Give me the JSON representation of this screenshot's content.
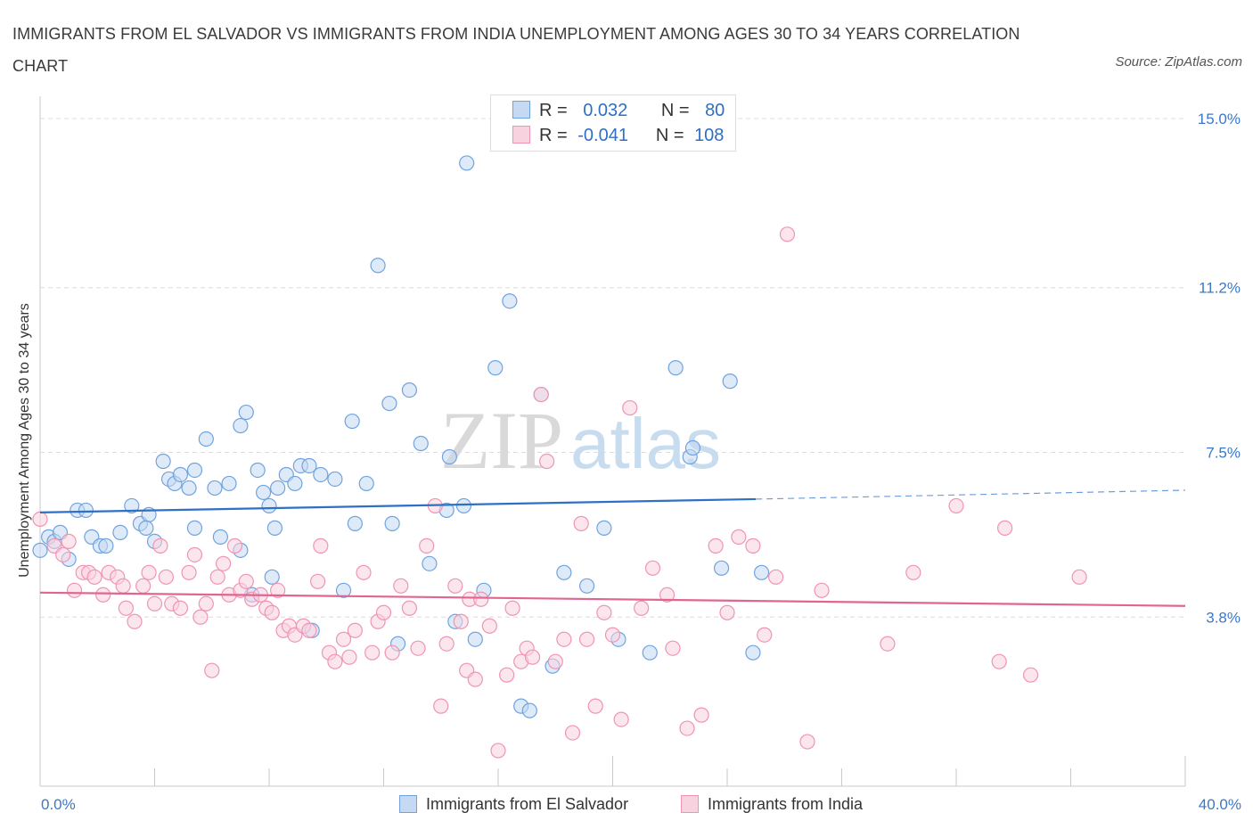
{
  "chart_data": {
    "type": "scatter",
    "title": "IMMIGRANTS FROM EL SALVADOR VS IMMIGRANTS FROM INDIA UNEMPLOYMENT AMONG AGES 30 TO 34 YEARS CORRELATION CHART",
    "source": "Source: ZipAtlas.com",
    "ylabel": "Unemployment Among Ages 30 to 34 years",
    "xlim": [
      0,
      40
    ],
    "ylim": [
      0,
      15
    ],
    "x_tick_labels": [
      "0.0%",
      "40.0%"
    ],
    "y_ticks": [
      3.8,
      7.5,
      11.2,
      15.0
    ],
    "y_tick_labels": [
      "3.8%",
      "7.5%",
      "11.2%",
      "15.0%"
    ],
    "grid": "horizontal dashed",
    "watermark": "ZIPatlas",
    "legend_stats": [
      {
        "r_label": "R =",
        "r_value": "0.032",
        "n_label": "N =",
        "n_value": "80"
      },
      {
        "r_label": "R =",
        "r_value": "-0.041",
        "n_label": "N =",
        "n_value": "108"
      }
    ],
    "series": [
      {
        "name": "Immigrants from El Salvador",
        "color": "#6fa3e0",
        "fill": "#c5d9f3",
        "trend_color": "#2f6fc4",
        "trend": {
          "x0": 0,
          "y0": 6.15,
          "x1": 25,
          "y1": 6.45,
          "dash_to_x": 40,
          "dash_to_y": 6.65
        },
        "points": [
          [
            0,
            5.3
          ],
          [
            0.3,
            5.6
          ],
          [
            0.5,
            5.5
          ],
          [
            0.7,
            5.7
          ],
          [
            1.0,
            5.1
          ],
          [
            1.3,
            6.2
          ],
          [
            1.6,
            6.2
          ],
          [
            1.8,
            5.6
          ],
          [
            2.1,
            5.4
          ],
          [
            2.3,
            5.4
          ],
          [
            2.8,
            5.7
          ],
          [
            3.2,
            6.3
          ],
          [
            3.5,
            5.9
          ],
          [
            3.8,
            6.1
          ],
          [
            3.7,
            5.8
          ],
          [
            4.0,
            5.5
          ],
          [
            4.3,
            7.3
          ],
          [
            4.5,
            6.9
          ],
          [
            4.7,
            6.8
          ],
          [
            4.9,
            7.0
          ],
          [
            5.2,
            6.7
          ],
          [
            5.4,
            7.1
          ],
          [
            5.4,
            5.8
          ],
          [
            5.8,
            7.8
          ],
          [
            6.1,
            6.7
          ],
          [
            6.3,
            5.6
          ],
          [
            6.6,
            6.8
          ],
          [
            7.0,
            8.1
          ],
          [
            7.2,
            8.4
          ],
          [
            7.0,
            5.3
          ],
          [
            7.4,
            4.3
          ],
          [
            7.6,
            7.1
          ],
          [
            7.8,
            6.6
          ],
          [
            8.0,
            6.3
          ],
          [
            8.2,
            5.8
          ],
          [
            8.1,
            4.7
          ],
          [
            8.3,
            6.7
          ],
          [
            8.6,
            7.0
          ],
          [
            8.9,
            6.8
          ],
          [
            9.1,
            7.2
          ],
          [
            9.4,
            7.2
          ],
          [
            9.5,
            3.5
          ],
          [
            9.8,
            7.0
          ],
          [
            10.3,
            6.9
          ],
          [
            10.6,
            4.4
          ],
          [
            10.9,
            8.2
          ],
          [
            11.0,
            5.9
          ],
          [
            11.4,
            6.8
          ],
          [
            11.8,
            11.7
          ],
          [
            12.2,
            8.6
          ],
          [
            12.3,
            5.9
          ],
          [
            12.5,
            3.2
          ],
          [
            12.9,
            8.9
          ],
          [
            13.3,
            7.7
          ],
          [
            13.6,
            5.0
          ],
          [
            14.2,
            6.2
          ],
          [
            14.3,
            7.4
          ],
          [
            14.5,
            3.7
          ],
          [
            14.8,
            6.3
          ],
          [
            14.9,
            14.0
          ],
          [
            15.2,
            3.3
          ],
          [
            15.5,
            4.4
          ],
          [
            15.9,
            9.4
          ],
          [
            16.4,
            10.9
          ],
          [
            16.8,
            1.8
          ],
          [
            17.1,
            1.7
          ],
          [
            17.5,
            8.8
          ],
          [
            17.9,
            2.7
          ],
          [
            18.3,
            4.8
          ],
          [
            19.1,
            4.5
          ],
          [
            19.7,
            5.8
          ],
          [
            20.2,
            3.3
          ],
          [
            21.3,
            3.0
          ],
          [
            22.2,
            9.4
          ],
          [
            22.7,
            7.4
          ],
          [
            22.8,
            7.6
          ],
          [
            23.8,
            4.9
          ],
          [
            24.1,
            9.1
          ],
          [
            24.9,
            3.0
          ],
          [
            25.2,
            4.8
          ]
        ]
      },
      {
        "name": "Immigrants from India",
        "color": "#ef94b2",
        "fill": "#f9d2df",
        "trend_color": "#e0668f",
        "trend": {
          "x0": 0,
          "y0": 4.35,
          "x1": 40,
          "y1": 4.05
        },
        "points": [
          [
            0,
            6.0
          ],
          [
            0.5,
            5.4
          ],
          [
            0.8,
            5.2
          ],
          [
            1.0,
            5.5
          ],
          [
            1.2,
            4.4
          ],
          [
            1.5,
            4.8
          ],
          [
            1.7,
            4.8
          ],
          [
            1.9,
            4.7
          ],
          [
            2.2,
            4.3
          ],
          [
            2.4,
            4.8
          ],
          [
            2.7,
            4.7
          ],
          [
            2.9,
            4.5
          ],
          [
            3.0,
            4.0
          ],
          [
            3.3,
            3.7
          ],
          [
            3.6,
            4.5
          ],
          [
            3.8,
            4.8
          ],
          [
            4.0,
            4.1
          ],
          [
            4.2,
            5.4
          ],
          [
            4.4,
            4.7
          ],
          [
            4.6,
            4.1
          ],
          [
            4.9,
            4.0
          ],
          [
            5.2,
            4.8
          ],
          [
            5.4,
            5.2
          ],
          [
            5.6,
            3.8
          ],
          [
            5.8,
            4.1
          ],
          [
            6.0,
            2.6
          ],
          [
            6.2,
            4.7
          ],
          [
            6.4,
            5.0
          ],
          [
            6.6,
            4.3
          ],
          [
            6.8,
            5.4
          ],
          [
            7.0,
            4.4
          ],
          [
            7.2,
            4.6
          ],
          [
            7.4,
            4.2
          ],
          [
            7.7,
            4.3
          ],
          [
            7.9,
            4.0
          ],
          [
            8.1,
            3.9
          ],
          [
            8.3,
            4.4
          ],
          [
            8.5,
            3.5
          ],
          [
            8.7,
            3.6
          ],
          [
            8.9,
            3.4
          ],
          [
            9.2,
            3.6
          ],
          [
            9.4,
            3.5
          ],
          [
            9.7,
            4.6
          ],
          [
            9.8,
            5.4
          ],
          [
            10.1,
            3.0
          ],
          [
            10.3,
            2.8
          ],
          [
            10.6,
            3.3
          ],
          [
            10.8,
            2.9
          ],
          [
            11.0,
            3.5
          ],
          [
            11.3,
            4.8
          ],
          [
            11.6,
            3.0
          ],
          [
            11.8,
            3.7
          ],
          [
            12.0,
            3.9
          ],
          [
            12.3,
            3.0
          ],
          [
            12.6,
            4.5
          ],
          [
            12.9,
            4.0
          ],
          [
            13.2,
            3.1
          ],
          [
            13.5,
            5.4
          ],
          [
            13.8,
            6.3
          ],
          [
            14.0,
            1.8
          ],
          [
            14.2,
            3.2
          ],
          [
            14.5,
            4.5
          ],
          [
            14.7,
            3.7
          ],
          [
            14.9,
            2.6
          ],
          [
            15.0,
            4.2
          ],
          [
            15.2,
            2.4
          ],
          [
            15.4,
            4.2
          ],
          [
            15.7,
            3.6
          ],
          [
            16.0,
            0.8
          ],
          [
            16.3,
            2.5
          ],
          [
            16.5,
            4.0
          ],
          [
            16.8,
            2.8
          ],
          [
            17.0,
            3.1
          ],
          [
            17.2,
            2.9
          ],
          [
            17.5,
            8.8
          ],
          [
            17.7,
            7.3
          ],
          [
            18.0,
            2.8
          ],
          [
            18.3,
            3.3
          ],
          [
            18.6,
            1.2
          ],
          [
            18.9,
            5.9
          ],
          [
            19.1,
            3.3
          ],
          [
            19.4,
            1.8
          ],
          [
            19.7,
            3.9
          ],
          [
            20.0,
            3.4
          ],
          [
            20.3,
            1.5
          ],
          [
            20.6,
            8.5
          ],
          [
            21.0,
            4.0
          ],
          [
            21.4,
            4.9
          ],
          [
            21.9,
            4.3
          ],
          [
            22.1,
            3.1
          ],
          [
            22.6,
            1.3
          ],
          [
            23.1,
            1.6
          ],
          [
            23.6,
            5.4
          ],
          [
            24.0,
            3.9
          ],
          [
            24.4,
            5.6
          ],
          [
            24.9,
            5.4
          ],
          [
            25.3,
            3.4
          ],
          [
            25.7,
            4.7
          ],
          [
            26.1,
            12.4
          ],
          [
            26.8,
            1.0
          ],
          [
            27.3,
            4.4
          ],
          [
            29.6,
            3.2
          ],
          [
            30.5,
            4.8
          ],
          [
            32.0,
            6.3
          ],
          [
            33.5,
            2.8
          ],
          [
            33.7,
            5.8
          ],
          [
            34.6,
            2.5
          ],
          [
            36.3,
            4.7
          ]
        ]
      }
    ]
  }
}
